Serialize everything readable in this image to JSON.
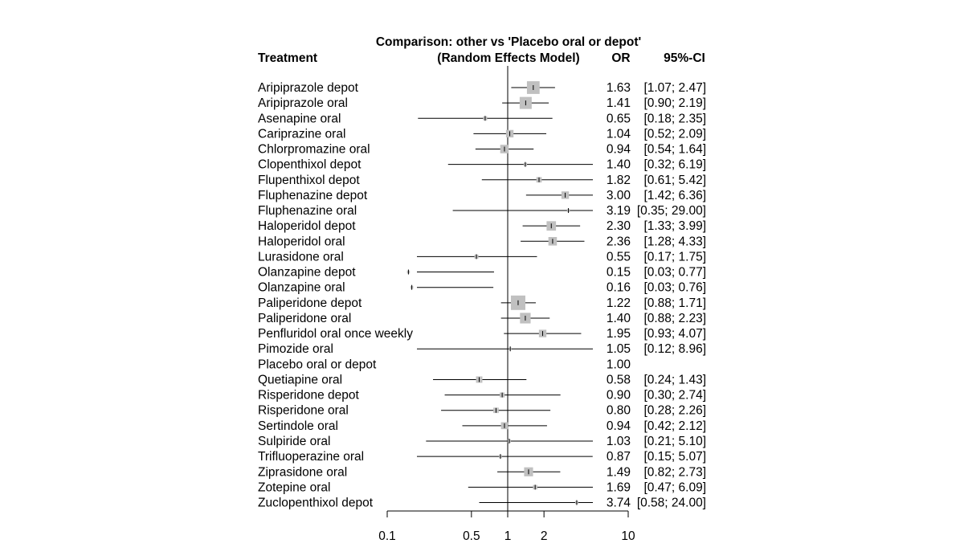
{
  "chart_data": {
    "type": "forest",
    "title": "Comparison: other vs 'Placebo oral or depot'",
    "subtitle": "(Random Effects Model)",
    "columns": {
      "treatment": "Treatment",
      "estimate": "OR",
      "ci": "95%-CI"
    },
    "x_scale": "log",
    "reference_line": 1,
    "x_ticks": [
      0.1,
      0.5,
      1,
      2,
      10
    ],
    "x_tick_labels": [
      "0.1",
      "0.5",
      "1",
      "2",
      "10"
    ],
    "xlim": [
      0.06,
      20
    ],
    "rows": [
      {
        "treatment": "Aripiprazole depot",
        "or": 1.63,
        "lower": 1.07,
        "upper": 2.47,
        "or_text": "1.63",
        "ci_text": "[1.07;  2.47]",
        "weight": 1.0
      },
      {
        "treatment": "Aripiprazole oral",
        "or": 1.41,
        "lower": 0.9,
        "upper": 2.19,
        "or_text": "1.41",
        "ci_text": "[0.90;  2.19]",
        "weight": 0.9
      },
      {
        "treatment": "Asenapine oral",
        "or": 0.65,
        "lower": 0.18,
        "upper": 2.35,
        "or_text": "0.65",
        "ci_text": "[0.18;  2.35]",
        "weight": 0.1
      },
      {
        "treatment": "Cariprazine oral",
        "or": 1.04,
        "lower": 0.52,
        "upper": 2.09,
        "or_text": "1.04",
        "ci_text": "[0.52;  2.09]",
        "weight": 0.35
      },
      {
        "treatment": "Chlorpromazine oral",
        "or": 0.94,
        "lower": 0.54,
        "upper": 1.64,
        "or_text": "0.94",
        "ci_text": "[0.54;  1.64]",
        "weight": 0.45
      },
      {
        "treatment": "Clopenthixol depot",
        "or": 1.4,
        "lower": 0.32,
        "upper": 6.19,
        "or_text": "1.40",
        "ci_text": "[0.32;  6.19]",
        "weight": 0.07
      },
      {
        "treatment": "Flupenthixol depot",
        "or": 1.82,
        "lower": 0.61,
        "upper": 5.42,
        "or_text": "1.82",
        "ci_text": "[0.61;  5.42]",
        "weight": 0.18
      },
      {
        "treatment": "Fluphenazine depot",
        "or": 3.0,
        "lower": 1.42,
        "upper": 6.36,
        "or_text": "3.00",
        "ci_text": "[1.42;  6.36]",
        "weight": 0.35
      },
      {
        "treatment": "Fluphenazine oral",
        "or": 3.19,
        "lower": 0.35,
        "upper": 29.0,
        "or_text": "3.19",
        "ci_text": "[0.35; 29.00]",
        "weight": 0.05
      },
      {
        "treatment": "Haloperidol depot",
        "or": 2.3,
        "lower": 1.33,
        "upper": 3.99,
        "or_text": "2.30",
        "ci_text": "[1.33;  3.99]",
        "weight": 0.55
      },
      {
        "treatment": "Haloperidol oral",
        "or": 2.36,
        "lower": 1.28,
        "upper": 4.33,
        "or_text": "2.36",
        "ci_text": "[1.28;  4.33]",
        "weight": 0.45
      },
      {
        "treatment": "Lurasidone oral",
        "or": 0.55,
        "lower": 0.17,
        "upper": 1.75,
        "or_text": "0.55",
        "ci_text": "[0.17;  1.75]",
        "weight": 0.1
      },
      {
        "treatment": "Olanzapine depot",
        "or": 0.15,
        "lower": 0.03,
        "upper": 0.77,
        "or_text": "0.15",
        "ci_text": "[0.03;  0.77]",
        "weight": 0.05
      },
      {
        "treatment": "Olanzapine oral",
        "or": 0.16,
        "lower": 0.03,
        "upper": 0.76,
        "or_text": "0.16",
        "ci_text": "[0.03;  0.76]",
        "weight": 0.05
      },
      {
        "treatment": "Paliperidone depot",
        "or": 1.22,
        "lower": 0.88,
        "upper": 1.71,
        "or_text": "1.22",
        "ci_text": "[0.88;  1.71]",
        "weight": 1.3
      },
      {
        "treatment": "Paliperidone oral",
        "or": 1.4,
        "lower": 0.88,
        "upper": 2.23,
        "or_text": "1.40",
        "ci_text": "[0.88;  2.23]",
        "weight": 0.7
      },
      {
        "treatment": "Penfluridol oral once weekly",
        "or": 1.95,
        "lower": 0.93,
        "upper": 4.07,
        "or_text": "1.95",
        "ci_text": "[0.93;  4.07]",
        "weight": 0.35
      },
      {
        "treatment": "Pimozide oral",
        "or": 1.05,
        "lower": 0.12,
        "upper": 8.96,
        "or_text": "1.05",
        "ci_text": "[0.12;  8.96]",
        "weight": 0.04
      },
      {
        "treatment": "Placebo oral or depot",
        "or": 1.0,
        "lower": null,
        "upper": null,
        "or_text": "1.00",
        "ci_text": "",
        "weight": 0
      },
      {
        "treatment": "Quetiapine oral",
        "or": 0.58,
        "lower": 0.24,
        "upper": 1.43,
        "or_text": "0.58",
        "ci_text": "[0.24;  1.43]",
        "weight": 0.25
      },
      {
        "treatment": "Risperidone depot",
        "or": 0.9,
        "lower": 0.3,
        "upper": 2.74,
        "or_text": "0.90",
        "ci_text": "[0.30;  2.74]",
        "weight": 0.15
      },
      {
        "treatment": "Risperidone oral",
        "or": 0.8,
        "lower": 0.28,
        "upper": 2.26,
        "or_text": "0.80",
        "ci_text": "[0.28;  2.26]",
        "weight": 0.18
      },
      {
        "treatment": "Sertindole oral",
        "or": 0.94,
        "lower": 0.42,
        "upper": 2.12,
        "or_text": "0.94",
        "ci_text": "[0.42;  2.12]",
        "weight": 0.3
      },
      {
        "treatment": "Sulpiride oral",
        "or": 1.03,
        "lower": 0.21,
        "upper": 5.1,
        "or_text": "1.03",
        "ci_text": "[0.21;  5.10]",
        "weight": 0.06
      },
      {
        "treatment": "Trifluoperazine oral",
        "or": 0.87,
        "lower": 0.15,
        "upper": 5.07,
        "or_text": "0.87",
        "ci_text": "[0.15;  5.07]",
        "weight": 0.05
      },
      {
        "treatment": "Ziprasidone oral",
        "or": 1.49,
        "lower": 0.82,
        "upper": 2.73,
        "or_text": "1.49",
        "ci_text": "[0.82;  2.73]",
        "weight": 0.5
      },
      {
        "treatment": "Zotepine oral",
        "or": 1.69,
        "lower": 0.47,
        "upper": 6.09,
        "or_text": "1.69",
        "ci_text": "[0.47;  6.09]",
        "weight": 0.12
      },
      {
        "treatment": "Zuclopenthixol depot",
        "or": 3.74,
        "lower": 0.58,
        "upper": 24.0,
        "or_text": "3.74",
        "ci_text": "[0.58; 24.00]",
        "weight": 0.06
      }
    ],
    "colors": {
      "square": "#c0c0c0",
      "line": "#000000",
      "text": "#000000"
    }
  }
}
